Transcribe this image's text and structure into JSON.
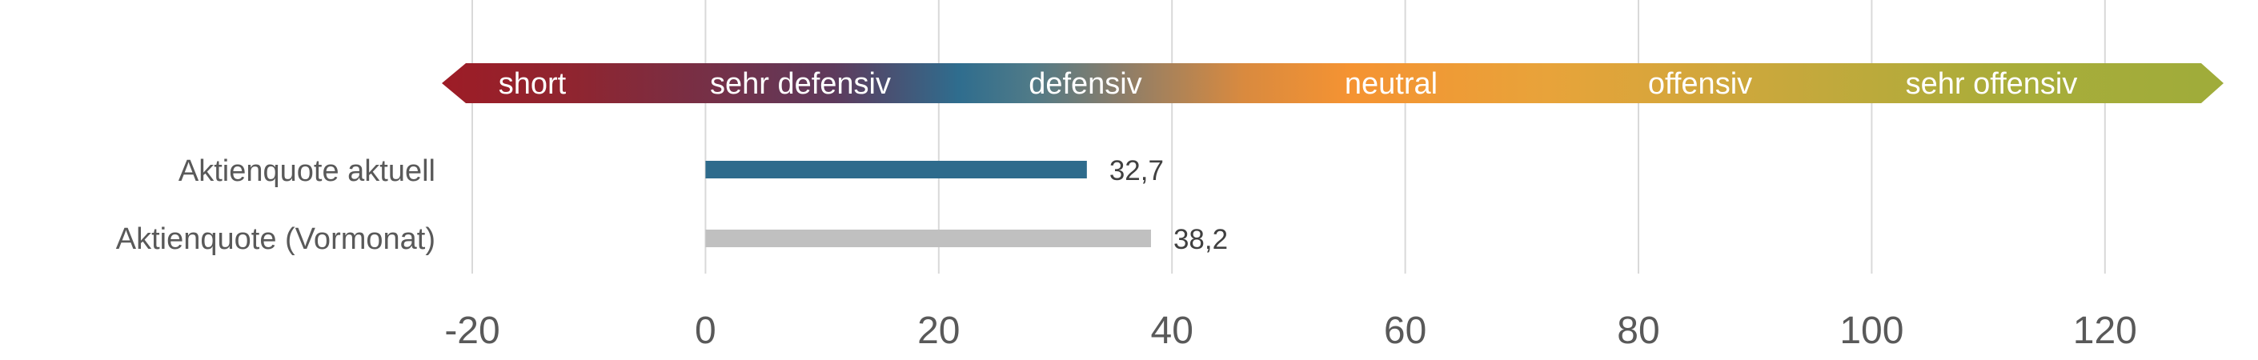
{
  "chart_data": {
    "type": "bar",
    "orientation": "horizontal",
    "categories": [
      "Aktienquote aktuell",
      "Aktienquote (Vormonat)"
    ],
    "values": [
      32.7,
      38.2
    ],
    "value_labels": [
      "32,7",
      "38,2"
    ],
    "xlim": [
      -20,
      130
    ],
    "x_ticks": [
      -20,
      0,
      20,
      40,
      60,
      80,
      100,
      120
    ],
    "grid": "vertical",
    "legend": "none",
    "scale_band": {
      "labels": [
        "short",
        "sehr defensiv",
        "defensiv",
        "neutral",
        "offensiv",
        "sehr offensiv"
      ],
      "colors": [
        "#9d1c26",
        "#2f6d8e",
        "#8a7d6a",
        "#f59332",
        "#c8a83c",
        "#9fac3a"
      ]
    },
    "bar_colors": [
      "#2e6b8c",
      "#c0c0c0"
    ]
  },
  "colors": {
    "grid": "#d9d9d9",
    "text": "#595959"
  }
}
